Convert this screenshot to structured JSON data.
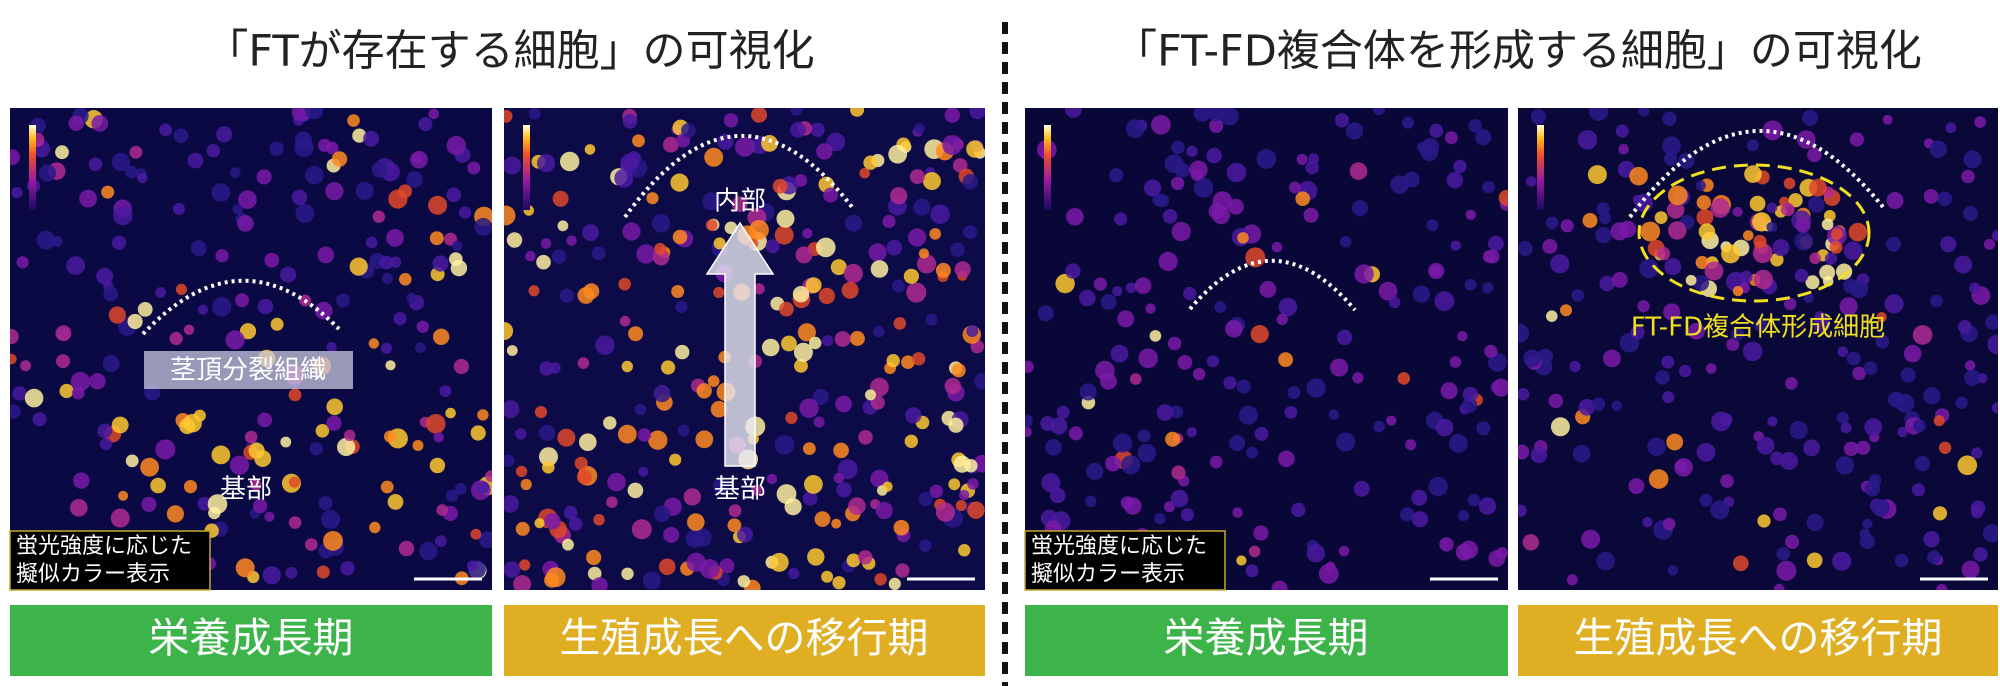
{
  "headings": [
    "「FTが存在する細胞」の可視化",
    "「FT-FD複合体を形成する細胞」の可視化"
  ],
  "panels": [
    {
      "labels": [
        "茎頂分裂組織",
        "基部"
      ],
      "legend": [
        "蛍光強度に応じた",
        "擬似カラー表示"
      ],
      "stage": "栄養成長期"
    },
    {
      "labels": [
        "内部",
        "基部"
      ],
      "stage": "生殖成長への移行期"
    },
    {
      "legend": [
        "蛍光強度に応じた",
        "擬似カラー表示"
      ],
      "stage": "栄養成長期"
    },
    {
      "labels": [
        "FT-FD複合体形成細胞"
      ],
      "stage": "生殖成長への移行期"
    }
  ]
}
